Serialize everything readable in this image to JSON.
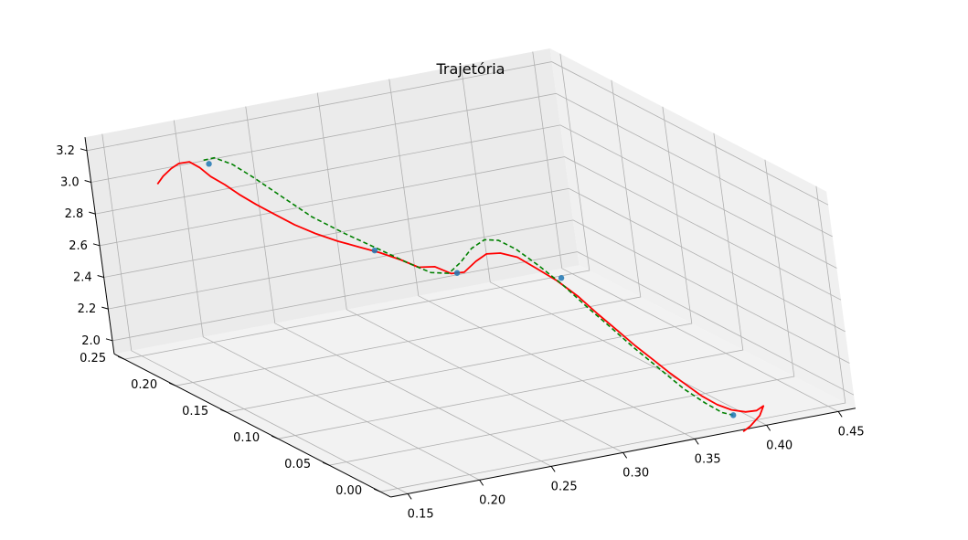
{
  "chart_data": {
    "type": "line3d",
    "title": "Trajetória",
    "xlabel": "",
    "ylabel": "",
    "zlabel": "",
    "xlim": [
      0.15,
      0.45
    ],
    "ylim": [
      0.0,
      0.25
    ],
    "zlim": [
      2.0,
      3.2
    ],
    "x_ticks": [
      "0.15",
      "0.20",
      "0.25",
      "0.30",
      "0.35",
      "0.40",
      "0.45"
    ],
    "y_ticks": [
      "0.00",
      "0.05",
      "0.10",
      "0.15",
      "0.20",
      "0.25"
    ],
    "z_ticks": [
      "2.0",
      "2.2",
      "2.4",
      "2.6",
      "2.8",
      "3.0",
      "3.2"
    ],
    "grid": true,
    "series": [
      {
        "kind": "measured-path",
        "style": "solid",
        "color": "#ff0000",
        "points": [
          [
            0.17,
            0.24,
            3.0
          ],
          [
            0.172,
            0.236,
            3.06
          ],
          [
            0.175,
            0.231,
            3.12
          ],
          [
            0.178,
            0.227,
            3.16
          ],
          [
            0.182,
            0.222,
            3.18
          ],
          [
            0.186,
            0.218,
            3.15
          ],
          [
            0.19,
            0.214,
            3.1
          ],
          [
            0.195,
            0.208,
            3.06
          ],
          [
            0.2,
            0.202,
            3.01
          ],
          [
            0.206,
            0.195,
            2.96
          ],
          [
            0.213,
            0.187,
            2.91
          ],
          [
            0.22,
            0.179,
            2.86
          ],
          [
            0.228,
            0.17,
            2.82
          ],
          [
            0.236,
            0.161,
            2.79
          ],
          [
            0.244,
            0.152,
            2.77
          ],
          [
            0.252,
            0.143,
            2.75
          ],
          [
            0.26,
            0.134,
            2.72
          ],
          [
            0.266,
            0.126,
            2.69
          ],
          [
            0.272,
            0.118,
            2.71
          ],
          [
            0.278,
            0.111,
            2.68
          ],
          [
            0.283,
            0.105,
            2.7
          ],
          [
            0.288,
            0.099,
            2.78
          ],
          [
            0.292,
            0.093,
            2.84
          ],
          [
            0.297,
            0.086,
            2.86
          ],
          [
            0.303,
            0.078,
            2.85
          ],
          [
            0.309,
            0.069,
            2.8
          ],
          [
            0.316,
            0.06,
            2.74
          ],
          [
            0.323,
            0.051,
            2.66
          ],
          [
            0.33,
            0.043,
            2.56
          ],
          [
            0.337,
            0.036,
            2.47
          ],
          [
            0.344,
            0.03,
            2.38
          ],
          [
            0.351,
            0.024,
            2.3
          ],
          [
            0.358,
            0.019,
            2.22
          ],
          [
            0.365,
            0.015,
            2.15
          ],
          [
            0.372,
            0.011,
            2.08
          ],
          [
            0.38,
            0.008,
            2.02
          ],
          [
            0.388,
            0.006,
            1.98
          ],
          [
            0.396,
            0.004,
            1.96
          ],
          [
            0.403,
            0.003,
            1.96
          ],
          [
            0.408,
            0.003,
            1.98
          ],
          [
            0.404,
            0.002,
            1.93
          ],
          [
            0.396,
            0.001,
            1.88
          ],
          [
            0.39,
            0.0,
            1.86
          ]
        ]
      },
      {
        "kind": "reference-path",
        "style": "dashed",
        "color": "#008000",
        "points": [
          [
            0.188,
            0.216,
            3.2
          ],
          [
            0.193,
            0.212,
            3.22
          ],
          [
            0.2,
            0.205,
            3.19
          ],
          [
            0.208,
            0.197,
            3.12
          ],
          [
            0.218,
            0.185,
            3.02
          ],
          [
            0.228,
            0.172,
            2.92
          ],
          [
            0.24,
            0.158,
            2.84
          ],
          [
            0.252,
            0.143,
            2.77
          ],
          [
            0.262,
            0.131,
            2.71
          ],
          [
            0.27,
            0.12,
            2.67
          ],
          [
            0.277,
            0.112,
            2.68
          ],
          [
            0.282,
            0.106,
            2.76
          ],
          [
            0.287,
            0.1,
            2.86
          ],
          [
            0.292,
            0.093,
            2.93
          ],
          [
            0.297,
            0.086,
            2.94
          ],
          [
            0.303,
            0.078,
            2.9
          ],
          [
            0.31,
            0.068,
            2.82
          ],
          [
            0.318,
            0.058,
            2.72
          ],
          [
            0.326,
            0.048,
            2.6
          ],
          [
            0.335,
            0.039,
            2.48
          ],
          [
            0.344,
            0.031,
            2.36
          ],
          [
            0.354,
            0.023,
            2.24
          ],
          [
            0.364,
            0.016,
            2.12
          ],
          [
            0.374,
            0.011,
            2.03
          ],
          [
            0.382,
            0.007,
            1.97
          ],
          [
            0.388,
            0.005,
            1.95
          ]
        ]
      },
      {
        "kind": "waypoints",
        "style": "markers",
        "color": "#1f77b4",
        "points": [
          [
            0.19,
            0.214,
            3.18
          ],
          [
            0.25,
            0.145,
            2.76
          ],
          [
            0.28,
            0.108,
            2.69
          ],
          [
            0.318,
            0.058,
            2.76
          ],
          [
            0.388,
            0.005,
            1.95
          ]
        ]
      }
    ]
  }
}
